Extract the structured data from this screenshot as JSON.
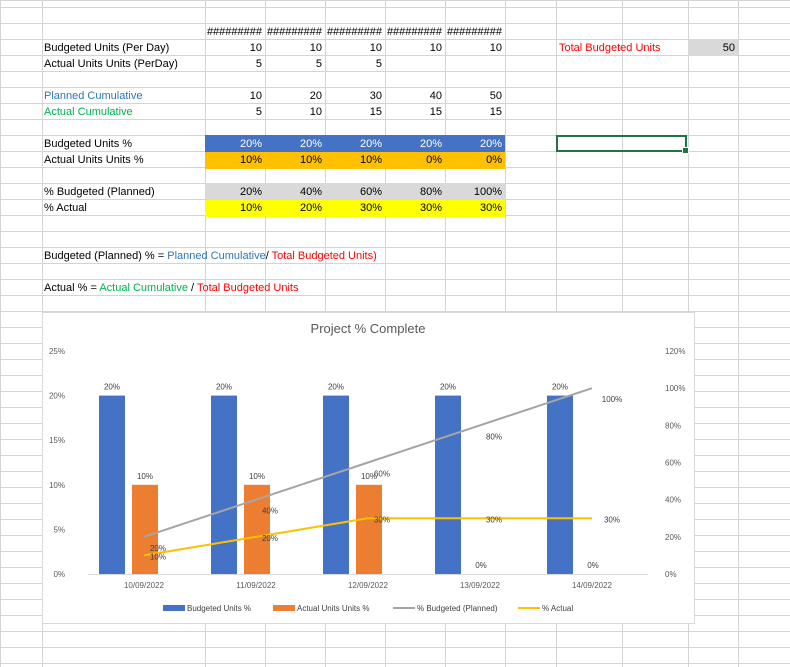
{
  "sheet": {
    "header_placeholders": [
      "#########",
      "#########",
      "#########",
      "#########",
      "#########"
    ],
    "rows": [
      {
        "label": "Budgeted Units (Per Day)",
        "values": [
          "10",
          "10",
          "10",
          "10",
          "10"
        ]
      },
      {
        "label": "Actual Units Units (PerDay)",
        "values": [
          "5",
          "5",
          "5",
          "",
          ""
        ]
      },
      {
        "label": "Planned Cumulative",
        "values": [
          "10",
          "20",
          "30",
          "40",
          "50"
        ]
      },
      {
        "label": "Actual Cumulative",
        "values": [
          "5",
          "10",
          "15",
          "15",
          "15"
        ]
      },
      {
        "label": "Budgeted Units %",
        "values": [
          "20%",
          "20%",
          "20%",
          "20%",
          "20%"
        ]
      },
      {
        "label": "Actual Units Units %",
        "values": [
          "10%",
          "10%",
          "10%",
          "0%",
          "0%"
        ]
      },
      {
        "label": "% Budgeted (Planned)",
        "values": [
          "20%",
          "40%",
          "60%",
          "80%",
          "100%"
        ]
      },
      {
        "label": "% Actual",
        "values": [
          "10%",
          "20%",
          "30%",
          "30%",
          "30%"
        ]
      }
    ],
    "total_label": "Total Budgeted Units",
    "total_value": "50",
    "formula1": {
      "a": "Budgeted (Planned) % = ",
      "b": "Planned Cumulative",
      "c": "/ ",
      "d": "Total Budgeted Units)"
    },
    "formula2": {
      "a": "Actual % = ",
      "b": "Actual Cumulative",
      "c": " / ",
      "d": "Total Budgeted Units"
    },
    "colors": {
      "blue_text": "#2e75b6",
      "green_text": "#00b050",
      "red_text": "#ff0000",
      "blue_fill": "#4472c4",
      "orange_fill": "#ffc000",
      "gray_fill": "#d9d9d9",
      "yellow_fill": "#ffff00",
      "selection": "#217346",
      "gridline": "#d4d4d4"
    }
  },
  "chart_data": {
    "type": "bar",
    "title": "Project % Complete",
    "categories": [
      "10/09/2022",
      "11/09/2022",
      "12/09/2022",
      "13/09/2022",
      "14/09/2022"
    ],
    "series": [
      {
        "name": "Budgeted Units %",
        "type": "bar",
        "axis": "left",
        "color": "#4472c4",
        "values": [
          20,
          20,
          20,
          20,
          20
        ],
        "labels": [
          "20%",
          "20%",
          "20%",
          "20%",
          "20%"
        ]
      },
      {
        "name": "Actual Units Units %",
        "type": "bar",
        "axis": "left",
        "color": "#ed7d31",
        "values": [
          10,
          10,
          10,
          0,
          0
        ],
        "labels": [
          "10%",
          "10%",
          "10%",
          "0%",
          "0%"
        ]
      },
      {
        "name": "% Budgeted (Planned)",
        "type": "line",
        "axis": "right",
        "color": "#a5a5a5",
        "values": [
          20,
          40,
          60,
          80,
          100
        ],
        "labels": [
          "20%",
          "40%",
          "60%",
          "80%",
          "100%"
        ]
      },
      {
        "name": "% Actual",
        "type": "line",
        "axis": "right",
        "color": "#ffc000",
        "values": [
          10,
          20,
          30,
          30,
          30
        ],
        "labels": [
          "10%",
          "20%",
          "30%",
          "30%",
          "30%"
        ]
      }
    ],
    "y_left": {
      "min": 0,
      "max": 25,
      "ticks": [
        "0%",
        "5%",
        "10%",
        "15%",
        "20%",
        "25%"
      ]
    },
    "y_right": {
      "min": 0,
      "max": 120,
      "ticks": [
        "0%",
        "20%",
        "40%",
        "60%",
        "80%",
        "100%",
        "120%"
      ]
    },
    "legend_position": "bottom",
    "grid": false
  }
}
